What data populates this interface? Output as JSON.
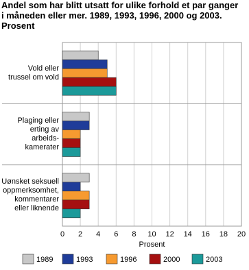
{
  "chart_data": {
    "type": "barh",
    "title": "Andel som har blitt utsatt for ulike forhold et par ganger\ni måneden eller mer. 1989, 1993, 1996, 2000 og 2003.\nProsent",
    "xlabel": "Prosent",
    "categories": [
      "Vold eller\ntrussel om vold",
      "Plaging eller\nerting av\narbeids-\nkamerater",
      "Uønsket seksuell\noppmerksomhet,\nkommentarer\neller liknende"
    ],
    "series": [
      {
        "name": "1989",
        "color": "#c8c8c8",
        "values": [
          4,
          3,
          3
        ]
      },
      {
        "name": "1993",
        "color": "#1f3c99",
        "values": [
          5,
          3,
          2
        ]
      },
      {
        "name": "1996",
        "color": "#f69a30",
        "values": [
          5,
          2,
          3
        ]
      },
      {
        "name": "2000",
        "color": "#a51010",
        "values": [
          6,
          2,
          3
        ]
      },
      {
        "name": "2003",
        "color": "#1c9a9a",
        "values": [
          6,
          2,
          2
        ]
      }
    ],
    "xlim": [
      0,
      20
    ],
    "xticks": [
      0,
      2,
      4,
      6,
      8,
      10,
      12,
      14,
      16,
      18,
      20
    ],
    "grid": true
  }
}
